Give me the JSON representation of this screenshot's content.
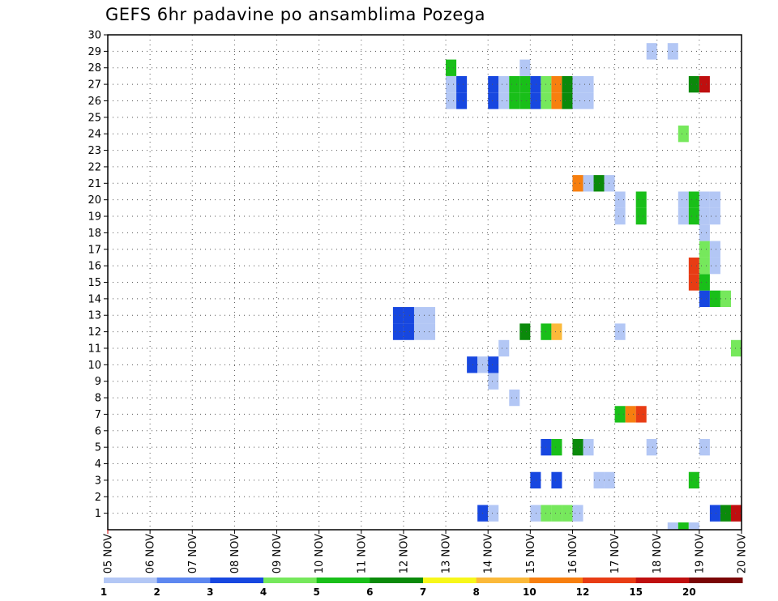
{
  "chart_data": {
    "type": "heatmap",
    "title": "GEFS 6hr padavine po ansamblima Pozega",
    "xlabel": "",
    "ylabel": "",
    "x_categories": [
      "05 NOV",
      "06 NOV",
      "07 NOV",
      "08 NOV",
      "09 NOV",
      "10 NOV",
      "11 NOV",
      "12 NOV",
      "13 NOV",
      "14 NOV",
      "15 NOV",
      "16 NOV",
      "17 NOV",
      "18 NOV",
      "19 NOV",
      "20 NOV"
    ],
    "x_range_days": [
      0,
      15
    ],
    "y_categories": [
      1,
      2,
      3,
      4,
      5,
      6,
      7,
      8,
      9,
      10,
      11,
      12,
      13,
      14,
      15,
      16,
      17,
      18,
      19,
      20,
      21,
      22,
      23,
      24,
      25,
      26,
      27,
      28,
      29,
      30
    ],
    "ylim": [
      0,
      30
    ],
    "grid": "dotted",
    "legend": {
      "placement": "bottom",
      "labels": [
        "1",
        "2",
        "3",
        "4",
        "5",
        "6",
        "7",
        "8",
        "10",
        "12",
        "15",
        "20"
      ],
      "colors": [
        "#b3c7f5",
        "#5d87f0",
        "#1747e0",
        "#76e85c",
        "#19bf19",
        "#0b8a0b",
        "#f7f71a",
        "#fbb93a",
        "#f77f0f",
        "#e83c14",
        "#bf0f0f",
        "#7a0606"
      ]
    },
    "cells": [
      {
        "member": 1,
        "day": 8.75,
        "value": 3
      },
      {
        "member": 1,
        "day": 9.0,
        "value": 1
      },
      {
        "member": 1,
        "day": 10.0,
        "value": 1
      },
      {
        "member": 1,
        "day": 10.25,
        "value": 4
      },
      {
        "member": 1,
        "day": 10.5,
        "value": 4
      },
      {
        "member": 1,
        "day": 10.75,
        "value": 4
      },
      {
        "member": 1,
        "day": 11.0,
        "value": 1
      },
      {
        "member": 1,
        "day": 14.25,
        "value": 3
      },
      {
        "member": 1,
        "day": 14.5,
        "value": 6
      },
      {
        "member": 1,
        "day": 14.75,
        "value": 15
      },
      {
        "member": 3,
        "day": 10.0,
        "value": 3
      },
      {
        "member": 3,
        "day": 10.5,
        "value": 3
      },
      {
        "member": 3,
        "day": 11.5,
        "value": 1
      },
      {
        "member": 3,
        "day": 11.75,
        "value": 1
      },
      {
        "member": 3,
        "day": 13.75,
        "value": 5
      },
      {
        "member": 5,
        "day": 10.25,
        "value": 3
      },
      {
        "member": 5,
        "day": 10.5,
        "value": 5
      },
      {
        "member": 5,
        "day": 11.0,
        "value": 6
      },
      {
        "member": 5,
        "day": 11.25,
        "value": 1
      },
      {
        "member": 5,
        "day": 12.75,
        "value": 1
      },
      {
        "member": 5,
        "day": 14.0,
        "value": 1
      },
      {
        "member": 7,
        "day": 12.0,
        "value": 5
      },
      {
        "member": 7,
        "day": 12.25,
        "value": 10
      },
      {
        "member": 7,
        "day": 12.5,
        "value": 12
      },
      {
        "member": 8,
        "day": 9.5,
        "value": 1
      },
      {
        "member": 9,
        "day": 9.0,
        "value": 1
      },
      {
        "member": 10,
        "day": 8.5,
        "value": 3
      },
      {
        "member": 10,
        "day": 8.75,
        "value": 1
      },
      {
        "member": 10,
        "day": 9.0,
        "value": 3
      },
      {
        "member": 11,
        "day": 9.25,
        "value": 1
      },
      {
        "member": 11,
        "day": 14.75,
        "value": 4
      },
      {
        "member": 12,
        "day": 6.75,
        "value": 3
      },
      {
        "member": 12,
        "day": 7.0,
        "value": 3
      },
      {
        "member": 12,
        "day": 7.25,
        "value": 1
      },
      {
        "member": 12,
        "day": 7.5,
        "value": 1
      },
      {
        "member": 12,
        "day": 9.75,
        "value": 6
      },
      {
        "member": 12,
        "day": 10.25,
        "value": 5
      },
      {
        "member": 12,
        "day": 10.5,
        "value": 8
      },
      {
        "member": 12,
        "day": 12.0,
        "value": 1
      },
      {
        "member": 13,
        "day": 6.75,
        "value": 3
      },
      {
        "member": 13,
        "day": 7.0,
        "value": 3
      },
      {
        "member": 13,
        "day": 7.25,
        "value": 1
      },
      {
        "member": 13,
        "day": 7.5,
        "value": 1
      },
      {
        "member": 14,
        "day": 14.0,
        "value": 3
      },
      {
        "member": 14,
        "day": 14.25,
        "value": 5
      },
      {
        "member": 14,
        "day": 14.5,
        "value": 4
      },
      {
        "member": 15,
        "day": 13.75,
        "value": 12
      },
      {
        "member": 15,
        "day": 14.0,
        "value": 5
      },
      {
        "member": 16,
        "day": 13.75,
        "value": 12
      },
      {
        "member": 16,
        "day": 14.0,
        "value": 4
      },
      {
        "member": 16,
        "day": 14.25,
        "value": 1
      },
      {
        "member": 17,
        "day": 14.0,
        "value": 4
      },
      {
        "member": 17,
        "day": 14.25,
        "value": 1
      },
      {
        "member": 18,
        "day": 14.0,
        "value": 1
      },
      {
        "member": 19,
        "day": 12.0,
        "value": 1
      },
      {
        "member": 19,
        "day": 12.5,
        "value": 5
      },
      {
        "member": 19,
        "day": 13.5,
        "value": 1
      },
      {
        "member": 19,
        "day": 13.75,
        "value": 5
      },
      {
        "member": 19,
        "day": 14.0,
        "value": 1
      },
      {
        "member": 19,
        "day": 14.25,
        "value": 1
      },
      {
        "member": 20,
        "day": 12.0,
        "value": 1
      },
      {
        "member": 20,
        "day": 12.5,
        "value": 5
      },
      {
        "member": 20,
        "day": 13.5,
        "value": 1
      },
      {
        "member": 20,
        "day": 13.75,
        "value": 5
      },
      {
        "member": 20,
        "day": 14.0,
        "value": 1
      },
      {
        "member": 20,
        "day": 14.25,
        "value": 1
      },
      {
        "member": 21,
        "day": 11.0,
        "value": 10
      },
      {
        "member": 21,
        "day": 11.25,
        "value": 1
      },
      {
        "member": 21,
        "day": 11.5,
        "value": 6
      },
      {
        "member": 21,
        "day": 11.75,
        "value": 1
      },
      {
        "member": 24,
        "day": 13.5,
        "value": 4
      },
      {
        "member": 26,
        "day": 8.0,
        "value": 1
      },
      {
        "member": 26,
        "day": 8.25,
        "value": 3
      },
      {
        "member": 26,
        "day": 9.0,
        "value": 3
      },
      {
        "member": 26,
        "day": 9.25,
        "value": 1
      },
      {
        "member": 26,
        "day": 9.5,
        "value": 5
      },
      {
        "member": 26,
        "day": 9.75,
        "value": 5
      },
      {
        "member": 26,
        "day": 10.0,
        "value": 3
      },
      {
        "member": 26,
        "day": 10.25,
        "value": 4
      },
      {
        "member": 26,
        "day": 10.5,
        "value": 10
      },
      {
        "member": 26,
        "day": 10.75,
        "value": 6
      },
      {
        "member": 26,
        "day": 11.0,
        "value": 1
      },
      {
        "member": 26,
        "day": 11.25,
        "value": 1
      },
      {
        "member": 27,
        "day": 8.0,
        "value": 1
      },
      {
        "member": 27,
        "day": 8.25,
        "value": 3
      },
      {
        "member": 27,
        "day": 9.0,
        "value": 3
      },
      {
        "member": 27,
        "day": 9.25,
        "value": 1
      },
      {
        "member": 27,
        "day": 9.5,
        "value": 5
      },
      {
        "member": 27,
        "day": 9.75,
        "value": 5
      },
      {
        "member": 27,
        "day": 10.0,
        "value": 3
      },
      {
        "member": 27,
        "day": 10.25,
        "value": 4
      },
      {
        "member": 27,
        "day": 10.5,
        "value": 10
      },
      {
        "member": 27,
        "day": 10.75,
        "value": 6
      },
      {
        "member": 27,
        "day": 11.0,
        "value": 1
      },
      {
        "member": 27,
        "day": 11.25,
        "value": 1
      },
      {
        "member": 27,
        "day": 13.75,
        "value": 6
      },
      {
        "member": 27,
        "day": 14.0,
        "value": 15
      },
      {
        "member": 28,
        "day": 8.0,
        "value": 5
      },
      {
        "member": 28,
        "day": 9.75,
        "value": 1
      },
      {
        "member": 29,
        "day": 12.75,
        "value": 1
      },
      {
        "member": 29,
        "day": 13.25,
        "value": 1
      }
    ],
    "bottom_strip": [
      {
        "day": 13.25,
        "value": 1
      },
      {
        "day": 13.5,
        "value": 5
      },
      {
        "day": 13.75,
        "value": 1
      }
    ]
  }
}
